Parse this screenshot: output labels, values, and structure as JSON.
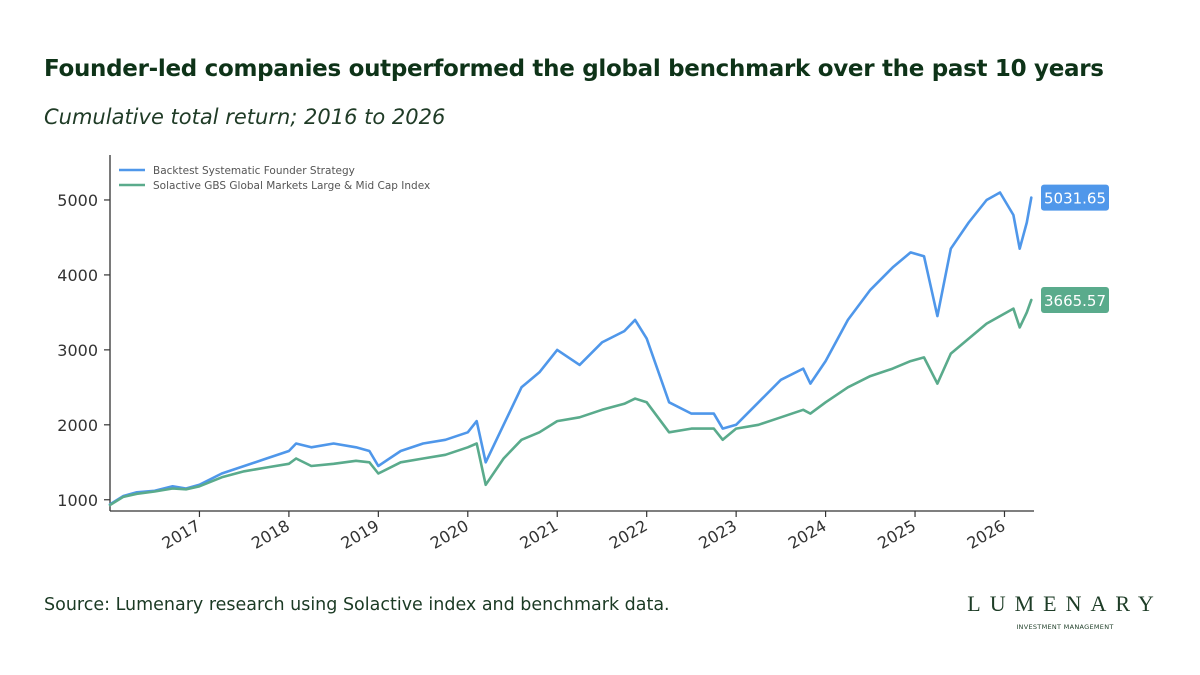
{
  "header": {
    "title": "Founder-led companies outperformed the global benchmark over the past 10 years",
    "subtitle": "Cumulative total return; 2016 to 2026"
  },
  "footer": {
    "source": "Source: Lumenary research using Solactive index and benchmark data.",
    "brand_name": "LUMENARY",
    "brand_tagline": "INVESTMENT MANAGEMENT"
  },
  "colors": {
    "strategy": "#4f97ea",
    "benchmark": "#5aab8c",
    "title": "#0e3318"
  },
  "chart_data": {
    "type": "line",
    "title": "",
    "xlabel": "",
    "ylabel": "",
    "xlim": [
      2016.0,
      2026.33
    ],
    "ylim": [
      850,
      5600
    ],
    "grid": false,
    "legend_position": "top-left",
    "x_ticks": [
      {
        "label": "2017",
        "value": 2017
      },
      {
        "label": "2018",
        "value": 2018
      },
      {
        "label": "2019",
        "value": 2019
      },
      {
        "label": "2020",
        "value": 2020
      },
      {
        "label": "2021",
        "value": 2021
      },
      {
        "label": "2022",
        "value": 2022
      },
      {
        "label": "2023",
        "value": 2023
      },
      {
        "label": "2024",
        "value": 2024
      },
      {
        "label": "2025",
        "value": 2025
      },
      {
        "label": "2026",
        "value": 2026
      }
    ],
    "y_ticks": [
      {
        "label": "1000",
        "value": 1000
      },
      {
        "label": "2000",
        "value": 2000
      },
      {
        "label": "3000",
        "value": 3000
      },
      {
        "label": "4000",
        "value": 4000
      },
      {
        "label": "5000",
        "value": 5000
      }
    ],
    "series": [
      {
        "name": "Backtest Systematic Founder Strategy",
        "color": "#4f97ea",
        "end_label": "5031.65",
        "x": [
          2016.0,
          2016.15,
          2016.3,
          2016.5,
          2016.7,
          2016.85,
          2017.0,
          2017.25,
          2017.5,
          2017.75,
          2018.0,
          2018.08,
          2018.25,
          2018.5,
          2018.75,
          2018.9,
          2019.0,
          2019.25,
          2019.5,
          2019.75,
          2020.0,
          2020.1,
          2020.2,
          2020.4,
          2020.6,
          2020.8,
          2021.0,
          2021.25,
          2021.5,
          2021.75,
          2021.87,
          2022.0,
          2022.25,
          2022.5,
          2022.75,
          2022.85,
          2023.0,
          2023.25,
          2023.5,
          2023.75,
          2023.83,
          2024.0,
          2024.25,
          2024.5,
          2024.75,
          2024.95,
          2025.1,
          2025.25,
          2025.4,
          2025.6,
          2025.8,
          2025.95,
          2026.1,
          2026.17,
          2026.25,
          2026.3
        ],
        "values": [
          940,
          1050,
          1100,
          1120,
          1180,
          1150,
          1200,
          1350,
          1450,
          1550,
          1650,
          1750,
          1700,
          1750,
          1700,
          1650,
          1450,
          1650,
          1750,
          1800,
          1900,
          2050,
          1500,
          2000,
          2500,
          2700,
          3000,
          2800,
          3100,
          3250,
          3400,
          3150,
          2300,
          2150,
          2150,
          1950,
          2000,
          2300,
          2600,
          2750,
          2550,
          2850,
          3400,
          3800,
          4100,
          4300,
          4250,
          3450,
          4350,
          4700,
          5000,
          5100,
          4800,
          4350,
          4700,
          5031.65
        ]
      },
      {
        "name": "Solactive GBS Global Markets Large & Mid Cap Index",
        "color": "#5aab8c",
        "end_label": "3665.57",
        "x": [
          2016.0,
          2016.15,
          2016.3,
          2016.5,
          2016.7,
          2016.85,
          2017.0,
          2017.25,
          2017.5,
          2017.75,
          2018.0,
          2018.08,
          2018.25,
          2018.5,
          2018.75,
          2018.9,
          2019.0,
          2019.25,
          2019.5,
          2019.75,
          2020.0,
          2020.1,
          2020.2,
          2020.4,
          2020.6,
          2020.8,
          2021.0,
          2021.25,
          2021.5,
          2021.75,
          2021.87,
          2022.0,
          2022.25,
          2022.5,
          2022.75,
          2022.85,
          2023.0,
          2023.25,
          2023.5,
          2023.75,
          2023.83,
          2024.0,
          2024.25,
          2024.5,
          2024.75,
          2024.95,
          2025.1,
          2025.25,
          2025.4,
          2025.6,
          2025.8,
          2025.95,
          2026.1,
          2026.17,
          2026.25,
          2026.3
        ],
        "values": [
          930,
          1040,
          1080,
          1110,
          1150,
          1140,
          1180,
          1300,
          1380,
          1430,
          1480,
          1550,
          1450,
          1480,
          1520,
          1500,
          1350,
          1500,
          1550,
          1600,
          1700,
          1750,
          1200,
          1550,
          1800,
          1900,
          2050,
          2100,
          2200,
          2280,
          2350,
          2300,
          1900,
          1950,
          1950,
          1800,
          1950,
          2000,
          2100,
          2200,
          2150,
          2300,
          2500,
          2650,
          2750,
          2850,
          2900,
          2550,
          2950,
          3150,
          3350,
          3450,
          3550,
          3300,
          3500,
          3665.57
        ]
      }
    ]
  }
}
